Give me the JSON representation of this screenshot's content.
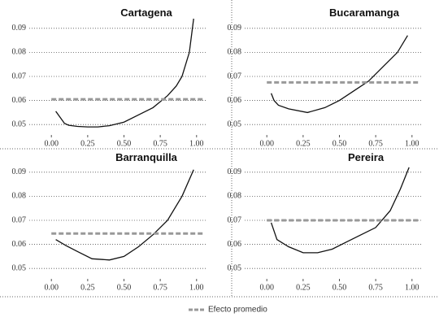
{
  "chart_data": [
    {
      "type": "line",
      "title": "Cartagena",
      "xlim": [
        -0.13,
        1.13
      ],
      "ylim": [
        0.046,
        0.095
      ],
      "xticks": [
        {
          "value": 0,
          "label": "0.00"
        },
        0.25,
        {
          "value": 0.5,
          "label": "0.50"
        },
        0.75,
        {
          "value": 1,
          "label": "1.00"
        }
      ],
      "yticks": [
        0.05,
        0.06,
        0.07,
        0.08,
        0.09
      ],
      "grid": true,
      "series": [
        {
          "color": "#111111",
          "x": [
            0.03,
            0.06,
            0.09,
            0.12,
            0.18,
            0.25,
            0.32,
            0.4,
            0.5,
            0.6,
            0.7,
            0.8,
            0.86,
            0.9,
            0.95,
            0.98
          ],
          "values": [
            0.0555,
            0.053,
            0.0505,
            0.0497,
            0.0492,
            0.049,
            0.049,
            0.0495,
            0.051,
            0.054,
            0.057,
            0.062,
            0.066,
            0.07,
            0.08,
            0.094
          ]
        },
        {
          "name": "Efecto promedio",
          "color": "#999999",
          "x": [
            0,
            1.05
          ],
          "values": [
            0.0605,
            0.0605
          ]
        }
      ]
    },
    {
      "type": "line",
      "title": "Bucaramanga",
      "xlim": [
        -0.13,
        1.13
      ],
      "ylim": [
        0.046,
        0.095
      ],
      "xticks": [
        {
          "value": 0,
          "label": "0.00"
        },
        0.25,
        {
          "value": 0.5,
          "label": "0.50"
        },
        0.75,
        {
          "value": 1,
          "label": "1.00"
        }
      ],
      "yticks": [
        0.05,
        0.06,
        0.07,
        0.08,
        0.09
      ],
      "grid": true,
      "series": [
        {
          "color": "#111111",
          "x": [
            0.03,
            0.05,
            0.08,
            0.15,
            0.28,
            0.4,
            0.5,
            0.6,
            0.7,
            0.8,
            0.9,
            0.97
          ],
          "values": [
            0.063,
            0.06,
            0.058,
            0.0565,
            0.055,
            0.057,
            0.06,
            0.064,
            0.068,
            0.074,
            0.08,
            0.087
          ]
        },
        {
          "color": "#999999",
          "x": [
            0,
            1.05
          ],
          "values": [
            0.0675,
            0.0675
          ]
        }
      ]
    },
    {
      "type": "line",
      "title": "Barranquilla",
      "xlim": [
        -0.13,
        1.13
      ],
      "ylim": [
        0.046,
        0.095
      ],
      "xticks": [
        {
          "value": 0,
          "label": "0.00"
        },
        0.25,
        {
          "value": 0.5,
          "label": "0.50"
        },
        0.75,
        {
          "value": 1,
          "label": "1.00"
        }
      ],
      "yticks": [
        0.05,
        0.06,
        0.07,
        0.08,
        0.09
      ],
      "grid": true,
      "series": [
        {
          "color": "#111111",
          "x": [
            0.03,
            0.1,
            0.18,
            0.28,
            0.4,
            0.5,
            0.6,
            0.7,
            0.8,
            0.9,
            0.98
          ],
          "values": [
            0.062,
            0.0595,
            0.057,
            0.054,
            0.0535,
            0.055,
            0.059,
            0.064,
            0.07,
            0.08,
            0.091
          ]
        },
        {
          "color": "#999999",
          "x": [
            0,
            1.05
          ],
          "values": [
            0.0645,
            0.0645
          ]
        }
      ]
    },
    {
      "type": "line",
      "title": "Pereira",
      "xlim": [
        -0.13,
        1.13
      ],
      "ylim": [
        0.046,
        0.095
      ],
      "xticks": [
        {
          "value": 0,
          "label": "0.00"
        },
        0.25,
        {
          "value": 0.5,
          "label": "0.50"
        },
        0.75,
        {
          "value": 1,
          "label": "1.00"
        }
      ],
      "yticks": [
        0.05,
        0.06,
        0.07,
        0.08,
        0.09
      ],
      "grid": true,
      "series": [
        {
          "color": "#111111",
          "x": [
            0.03,
            0.07,
            0.15,
            0.25,
            0.35,
            0.45,
            0.55,
            0.65,
            0.75,
            0.85,
            0.92,
            0.98
          ],
          "values": [
            0.069,
            0.062,
            0.059,
            0.0565,
            0.0565,
            0.058,
            0.061,
            0.064,
            0.067,
            0.074,
            0.083,
            0.092
          ]
        },
        {
          "color": "#999999",
          "x": [
            0,
            1.05
          ],
          "values": [
            0.07,
            0.07
          ]
        }
      ]
    }
  ]
}
